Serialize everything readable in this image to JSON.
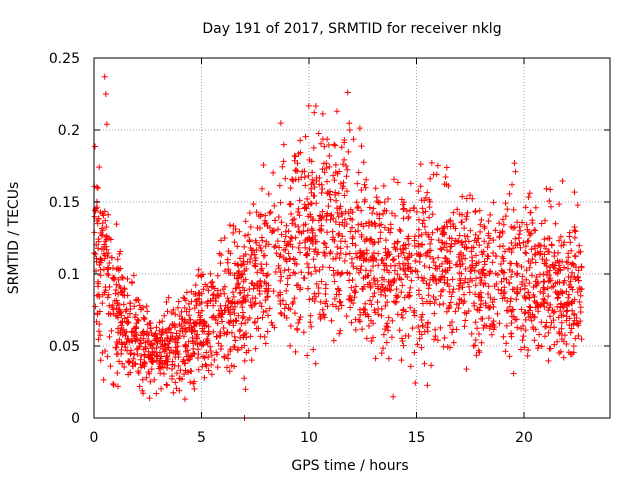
{
  "chart_data": {
    "type": "scatter",
    "title": "Day 191 of 2017, SRMTID for receiver nklg",
    "xlabel": "GPS time / hours",
    "ylabel": "SRMTID / TECUs",
    "xlim": [
      0,
      24
    ],
    "ylim": [
      0,
      0.25
    ],
    "xticks": [
      0,
      5,
      10,
      15,
      20
    ],
    "xtick_labels": [
      "0",
      "5",
      "10",
      "15",
      "20"
    ],
    "yticks": [
      0,
      0.05,
      0.1,
      0.15,
      0.2,
      0.25
    ],
    "ytick_labels": [
      "0",
      "0.05",
      "0.1",
      "0.15",
      "0.2",
      "0.25"
    ],
    "grid": true,
    "marker": "+",
    "color": "#ff0000",
    "point_count_estimate": 2500,
    "trend": {
      "description": "Dense scatter of many satellite tracks; approximate median level by hour",
      "x": [
        0,
        0.5,
        1,
        2,
        3,
        4,
        5,
        6,
        7,
        8,
        9,
        10,
        11,
        12,
        13,
        14,
        15,
        16,
        17,
        18,
        19,
        20,
        21,
        22,
        22.7
      ],
      "y": [
        0.12,
        0.11,
        0.075,
        0.055,
        0.045,
        0.05,
        0.065,
        0.075,
        0.09,
        0.105,
        0.12,
        0.13,
        0.13,
        0.12,
        0.105,
        0.1,
        0.11,
        0.11,
        0.105,
        0.1,
        0.1,
        0.1,
        0.095,
        0.09,
        0.09
      ]
    },
    "notable_points": [
      {
        "x": 0.5,
        "y": 0.237
      },
      {
        "x": 0.55,
        "y": 0.225
      },
      {
        "x": 0.6,
        "y": 0.204
      },
      {
        "x": 11.3,
        "y": 0.213
      },
      {
        "x": 11.8,
        "y": 0.226
      },
      {
        "x": 11.9,
        "y": 0.2
      },
      {
        "x": 2.9,
        "y": 0.017
      },
      {
        "x": 7.0,
        "y": 0.0
      },
      {
        "x": 21.4,
        "y": 0.063
      }
    ]
  }
}
